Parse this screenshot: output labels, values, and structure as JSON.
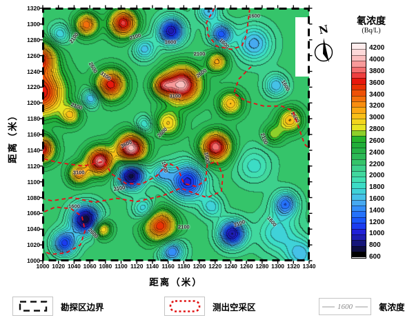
{
  "figure": {
    "x_axis_title": "距离（米）",
    "y_axis_title": "距离（米）",
    "north_label": "N"
  },
  "axes": {
    "x": {
      "min": 1000,
      "max": 1340,
      "step": 20,
      "ticks": [
        1000,
        1020,
        1040,
        1060,
        1080,
        1100,
        1120,
        1140,
        1160,
        1180,
        1200,
        1220,
        1240,
        1260,
        1280,
        1300,
        1320,
        1340
      ]
    },
    "y": {
      "min": 1000,
      "max": 1320,
      "step": 20,
      "ticks": [
        1000,
        1020,
        1040,
        1060,
        1080,
        1100,
        1120,
        1140,
        1160,
        1180,
        1200,
        1220,
        1240,
        1260,
        1280,
        1300,
        1320
      ]
    }
  },
  "colorbar": {
    "title": "氡浓度",
    "unit": "(Bq/L)",
    "min": 600,
    "max": 4300,
    "step": 100,
    "label_step": 200,
    "tick_labels": [
      4200,
      4000,
      3800,
      3600,
      3400,
      3200,
      3000,
      2800,
      2600,
      2400,
      2200,
      2000,
      1800,
      1600,
      1400,
      1200,
      1000,
      800,
      600
    ],
    "palette": [
      "#000000",
      "#0e0e40",
      "#16167a",
      "#1d1db0",
      "#2121d8",
      "#1b3cf0",
      "#1a57fa",
      "#2572fb",
      "#348ef8",
      "#47a9f0",
      "#45c1e8",
      "#3fd2d8",
      "#3cdcc6",
      "#41dfb2",
      "#41d89e",
      "#3dd08c",
      "#35c46a",
      "#2cb957",
      "#26b347",
      "#21ae39",
      "#27b42c",
      "#8ed02a",
      "#e6e422",
      "#f3d51d",
      "#f9bf18",
      "#fba813",
      "#f98d0f",
      "#f4700b",
      "#ee5107",
      "#e93104",
      "#e7180d",
      "#ee4040",
      "#f46f6f",
      "#f89a9a",
      "#fbbebe",
      "#fdd9d9",
      "#ffeded"
    ]
  },
  "legend": {
    "items": [
      {
        "label": "勘探区边界"
      },
      {
        "label": "测出空采区"
      },
      {
        "label": "氡浓度",
        "sample": "1600"
      }
    ]
  },
  "chart_data": {
    "type": "contour",
    "title": "",
    "xlabel": "距离（米）",
    "ylabel": "距离（米）",
    "unit": "Bq/L",
    "x_range": [
      1000,
      1340
    ],
    "y_range": [
      1000,
      1320
    ],
    "value_range": [
      600,
      4300
    ],
    "labeled_levels": [
      1600,
      2100,
      2600,
      3100,
      3600
    ],
    "base": 2250,
    "peaks": [
      [
        998,
        1213,
        1450,
        21
      ],
      [
        997,
        1257,
        1250,
        14
      ],
      [
        999,
        1141,
        1500,
        11
      ],
      [
        1056,
        1299,
        1150,
        10
      ],
      [
        1103,
        1301,
        1500,
        12
      ],
      [
        1087,
        1223,
        1450,
        13
      ],
      [
        1178,
        1223,
        1800,
        16
      ],
      [
        1153,
        1222,
        1000,
        9
      ],
      [
        1221,
        1144,
        1650,
        13
      ],
      [
        1240,
        1199,
        850,
        11
      ],
      [
        1160,
        1174,
        750,
        12
      ],
      [
        1073,
        1126,
        1700,
        12
      ],
      [
        1113,
        1142,
        1850,
        13
      ],
      [
        1046,
        1110,
        1000,
        9
      ],
      [
        1036,
        1184,
        700,
        9
      ],
      [
        1150,
        1044,
        1350,
        14
      ],
      [
        1076,
        1040,
        950,
        8
      ],
      [
        1316,
        1178,
        850,
        11
      ],
      [
        1223,
        1252,
        900,
        9
      ],
      [
        1295,
        1160,
        500,
        9
      ],
      [
        1164,
        1291,
        -1300,
        12
      ],
      [
        1228,
        1287,
        -1000,
        10
      ],
      [
        1270,
        1275,
        -700,
        16
      ],
      [
        1212,
        1316,
        -650,
        10
      ],
      [
        1130,
        1268,
        -600,
        10
      ],
      [
        1022,
        1287,
        -550,
        9
      ],
      [
        1062,
        1206,
        -750,
        8
      ],
      [
        1130,
        1172,
        -500,
        8
      ],
      [
        1113,
        1108,
        -1550,
        12
      ],
      [
        1152,
        1110,
        -600,
        9
      ],
      [
        1185,
        1100,
        -1200,
        16
      ],
      [
        1055,
        1052,
        -1550,
        13
      ],
      [
        1028,
        1022,
        -1100,
        11
      ],
      [
        1242,
        1034,
        -1350,
        12
      ],
      [
        1310,
        1072,
        -900,
        11
      ],
      [
        1165,
        1012,
        -900,
        11
      ],
      [
        1130,
        1065,
        -600,
        10
      ],
      [
        1216,
        1068,
        -500,
        10
      ],
      [
        1270,
        1120,
        -400,
        16
      ],
      [
        1300,
        1035,
        -500,
        18
      ],
      [
        1330,
        1008,
        -600,
        14
      ],
      [
        1298,
        1222,
        -650,
        10
      ]
    ],
    "contour_labels": [
      {
        "t": "2100",
        "x": 1040,
        "y": 1282,
        "r": -55
      },
      {
        "t": "2100",
        "x": 1118,
        "y": 1284,
        "r": -15
      },
      {
        "t": "1600",
        "x": 1163,
        "y": 1277,
        "r": 0
      },
      {
        "t": "1600",
        "x": 1232,
        "y": 1275,
        "r": 45
      },
      {
        "t": "2100",
        "x": 1200,
        "y": 1262,
        "r": 0
      },
      {
        "t": "3100",
        "x": 1080,
        "y": 1234,
        "r": 35
      },
      {
        "t": "2600",
        "x": 1064,
        "y": 1245,
        "r": 60
      },
      {
        "t": "3100",
        "x": 1169,
        "y": 1209,
        "r": 0
      },
      {
        "t": "2600",
        "x": 1203,
        "y": 1238,
        "r": -35
      },
      {
        "t": "2100",
        "x": 1043,
        "y": 1196,
        "r": 20
      },
      {
        "t": "2600",
        "x": 1152,
        "y": 1163,
        "r": -45
      },
      {
        "t": "3600",
        "x": 1107,
        "y": 1148,
        "r": -25
      },
      {
        "t": "3100",
        "x": 1046,
        "y": 1112,
        "r": 0
      },
      {
        "t": "1600",
        "x": 1156,
        "y": 1119,
        "r": 75
      },
      {
        "t": "2100",
        "x": 1098,
        "y": 1092,
        "r": -10
      },
      {
        "t": "1600",
        "x": 1040,
        "y": 1069,
        "r": 0
      },
      {
        "t": "2600",
        "x": 1064,
        "y": 1035,
        "r": 45
      },
      {
        "t": "2100",
        "x": 1180,
        "y": 1043,
        "r": 0
      },
      {
        "t": "2100",
        "x": 1251,
        "y": 1047,
        "r": -20
      },
      {
        "t": "1600",
        "x": 1292,
        "y": 1050,
        "r": 50
      },
      {
        "t": "1600",
        "x": 1310,
        "y": 1222,
        "r": 60
      },
      {
        "t": "2100",
        "x": 1283,
        "y": 1155,
        "r": 70
      },
      {
        "t": "2600",
        "x": 1322,
        "y": 1182,
        "r": 60
      },
      {
        "t": "1600",
        "x": 1210,
        "y": 1130,
        "r": 80
      },
      {
        "t": "1600",
        "x": 1270,
        "y": 1310,
        "r": 0
      }
    ],
    "goaf_boundaries": [
      [
        [
          1219,
          1320
        ],
        [
          1209,
          1302
        ],
        [
          1211,
          1286
        ],
        [
          1222,
          1272
        ],
        [
          1240,
          1268
        ],
        [
          1254,
          1272
        ],
        [
          1260,
          1286
        ],
        [
          1262,
          1302
        ],
        [
          1264,
          1318
        ]
      ],
      [
        [
          1266,
          1246
        ],
        [
          1250,
          1230
        ],
        [
          1244,
          1212
        ],
        [
          1260,
          1202
        ],
        [
          1282,
          1196
        ],
        [
          1305,
          1196
        ],
        [
          1319,
          1190
        ],
        [
          1327,
          1168
        ],
        [
          1334,
          1148
        ],
        [
          1340,
          1142
        ]
      ],
      [
        [
          1002,
          1129
        ],
        [
          1022,
          1124
        ],
        [
          1052,
          1120
        ],
        [
          1078,
          1126
        ],
        [
          1088,
          1110
        ],
        [
          1106,
          1098
        ],
        [
          1126,
          1097
        ],
        [
          1146,
          1108
        ],
        [
          1160,
          1124
        ],
        [
          1172,
          1118
        ],
        [
          1180,
          1098
        ],
        [
          1196,
          1094
        ],
        [
          1208,
          1102
        ],
        [
          1210,
          1122
        ],
        [
          1222,
          1126
        ],
        [
          1230,
          1108
        ],
        [
          1228,
          1088
        ],
        [
          1210,
          1080
        ],
        [
          1192,
          1086
        ],
        [
          1176,
          1092
        ],
        [
          1152,
          1082
        ],
        [
          1120,
          1075
        ],
        [
          1094,
          1079
        ],
        [
          1066,
          1074
        ],
        [
          1038,
          1080
        ],
        [
          1012,
          1076
        ],
        [
          1002,
          1078
        ]
      ],
      [
        [
          1002,
          1062
        ],
        [
          1016,
          1068
        ],
        [
          1036,
          1066
        ],
        [
          1050,
          1056
        ],
        [
          1054,
          1038
        ],
        [
          1048,
          1020
        ],
        [
          1030,
          1010
        ],
        [
          1010,
          1008
        ],
        [
          1002,
          1012
        ]
      ]
    ]
  }
}
